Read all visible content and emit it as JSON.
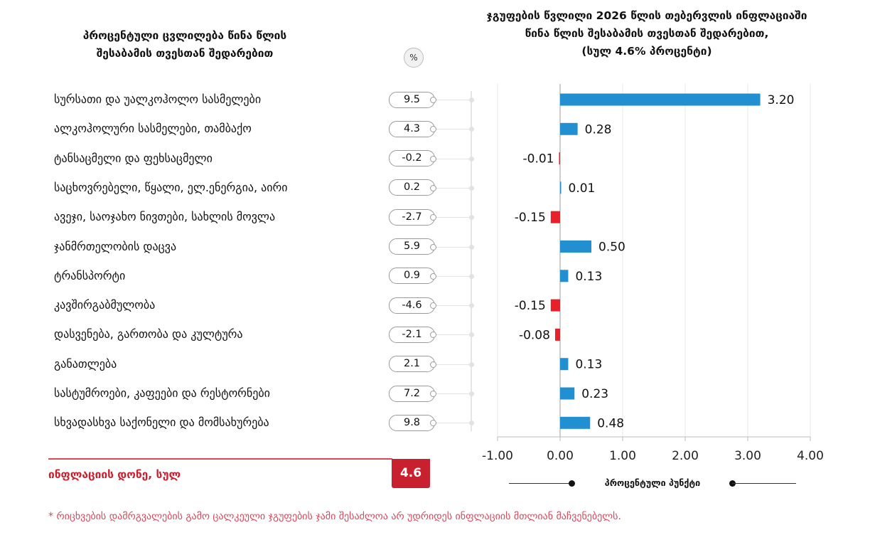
{
  "left_header": {
    "title_line1": "პროცენტული ცვლილება წინა წლის",
    "title_line2": "შესაბამის თვესთან შედარებით",
    "unit_badge": "%"
  },
  "chart_data": {
    "type": "bar",
    "orientation": "horizontal",
    "title_line1": "ჯგუფების წვლილი 2026 წლის თებერვლის ინფლაციაში",
    "title_line2": "წინა წლის შესაბამის თვესთან შედარებით,",
    "title_line3": "(სულ 4.6% პროცენტი)",
    "xlabel": "პროცენტული პუნქტი",
    "xlim": [
      -1,
      4
    ],
    "xticks": [
      "-1.00",
      "0.00",
      "1.00",
      "2.00",
      "3.00",
      "4.00"
    ],
    "xtick_values": [
      -1,
      0,
      1,
      2,
      3,
      4
    ],
    "grid": true,
    "categories": [
      "სურსათი და უალკოჰოლო სასმელები",
      "ალკოჰოლური სასმელები, თამბაქო",
      "ტანსაცმელი და ფეხსაცმელი",
      "საცხოვრებელი, წყალი, ელ.ენერგია, აირი",
      "ავეჯი, საოჯახო ნივთები, სახლის მოვლა",
      "ჯანმრთელობის დაცვა",
      "ტრანსპორტი",
      "კავშირგაბმულობა",
      "დასვენება, გართობა და კულტურა",
      "განათლება",
      "სასტუმროები, კაფეები და რესტორნები",
      "სხვადასხვა საქონელი და მომსახურება"
    ],
    "percent_change": [
      "9.5",
      "4.3",
      "-0.2",
      "0.2",
      "-2.7",
      "5.9",
      "0.9",
      "-4.6",
      "-2.1",
      "2.1",
      "7.2",
      "9.8"
    ],
    "values": [
      3.2,
      0.28,
      -0.01,
      0.01,
      -0.15,
      0.5,
      0.13,
      -0.15,
      -0.08,
      0.13,
      0.23,
      0.48
    ],
    "value_labels": [
      "3.20",
      "0.28",
      "-0.01",
      "0.01",
      "-0.15",
      "0.50",
      "0.13",
      "-0.15",
      "-0.08",
      "0.13",
      "0.23",
      "0.48"
    ],
    "colors": {
      "positive": "#2290d0",
      "negative": "#e8202a"
    }
  },
  "total": {
    "label": "ინფლაციის დონე, სულ",
    "value": "4.6",
    "color": "#c8202e"
  },
  "footnote": "* რიცხვების დამრგვალების გამო ცალკეული ჯგუფების ჯამი შესაძლოა არ უდრიდეს ინფლაციის მთლიან მაჩვენებელს."
}
